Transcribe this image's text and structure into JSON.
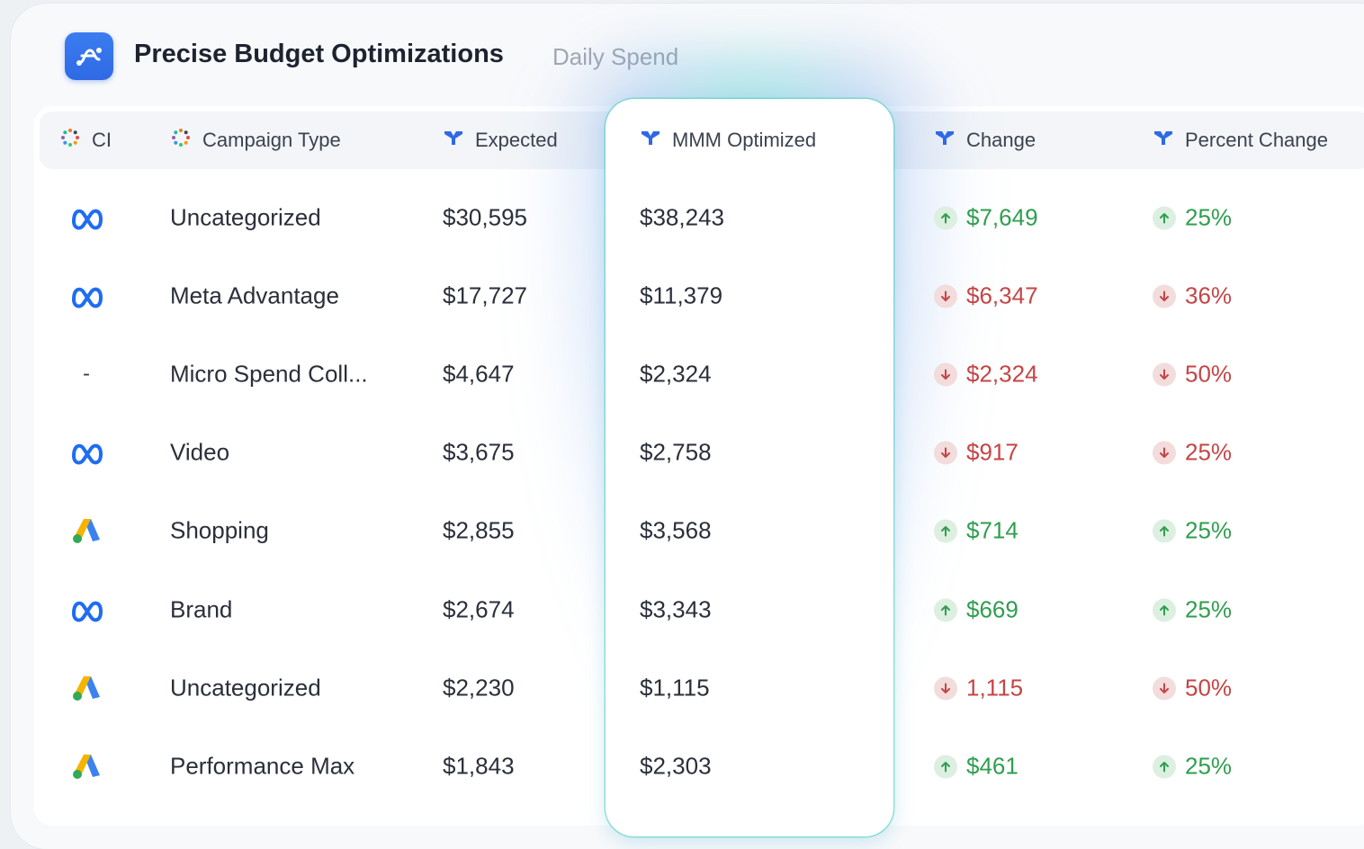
{
  "header": {
    "title": "Precise Budget Optimizations",
    "subtitle": "Daily Spend",
    "logo_icon": "flow-logo-icon"
  },
  "colors": {
    "accent": "#2f6ae4",
    "positive": "#2f9e4f",
    "negative": "#c54545",
    "highlight_glow": "#40d2c8"
  },
  "columns": [
    {
      "key": "ci",
      "label": "CI",
      "icon": "dots-spinner-icon"
    },
    {
      "key": "campaign_type",
      "label": "Campaign Type",
      "icon": "dots-spinner-icon"
    },
    {
      "key": "expected",
      "label": "Expected",
      "icon": "filter-funnel-icon"
    },
    {
      "key": "mmm_optimized",
      "label": "MMM Optimized",
      "icon": "filter-funnel-icon"
    },
    {
      "key": "change",
      "label": "Change",
      "icon": "filter-funnel-icon"
    },
    {
      "key": "percent_change",
      "label": "Percent Change",
      "icon": "filter-funnel-icon"
    }
  ],
  "rows": [
    {
      "ci": "meta",
      "campaign_type": "Uncategorized",
      "expected": "$30,595",
      "mmm_optimized": "$38,243",
      "change": "$7,649",
      "percent_change": "25%",
      "direction": "up"
    },
    {
      "ci": "meta",
      "campaign_type": "Meta Advantage",
      "expected": "$17,727",
      "mmm_optimized": "$11,379",
      "change": "$6,347",
      "percent_change": "36%",
      "direction": "down"
    },
    {
      "ci": "-",
      "campaign_type": "Micro Spend Coll...",
      "expected": "$4,647",
      "mmm_optimized": "$2,324",
      "change": "$2,324",
      "percent_change": "50%",
      "direction": "down"
    },
    {
      "ci": "meta",
      "campaign_type": "Video",
      "expected": "$3,675",
      "mmm_optimized": "$2,758",
      "change": "$917",
      "percent_change": "25%",
      "direction": "down"
    },
    {
      "ci": "google-ads",
      "campaign_type": "Shopping",
      "expected": "$2,855",
      "mmm_optimized": "$3,568",
      "change": "$714",
      "percent_change": "25%",
      "direction": "up"
    },
    {
      "ci": "meta",
      "campaign_type": "Brand",
      "expected": "$2,674",
      "mmm_optimized": "$3,343",
      "change": "$669",
      "percent_change": "25%",
      "direction": "up"
    },
    {
      "ci": "google-ads",
      "campaign_type": "Uncategorized",
      "expected": "$2,230",
      "mmm_optimized": "$1,115",
      "change": "1,115",
      "percent_change": "50%",
      "direction": "down"
    },
    {
      "ci": "google-ads",
      "campaign_type": "Performance Max",
      "expected": "$1,843",
      "mmm_optimized": "$2,303",
      "change": "$461",
      "percent_change": "25%",
      "direction": "up"
    }
  ]
}
